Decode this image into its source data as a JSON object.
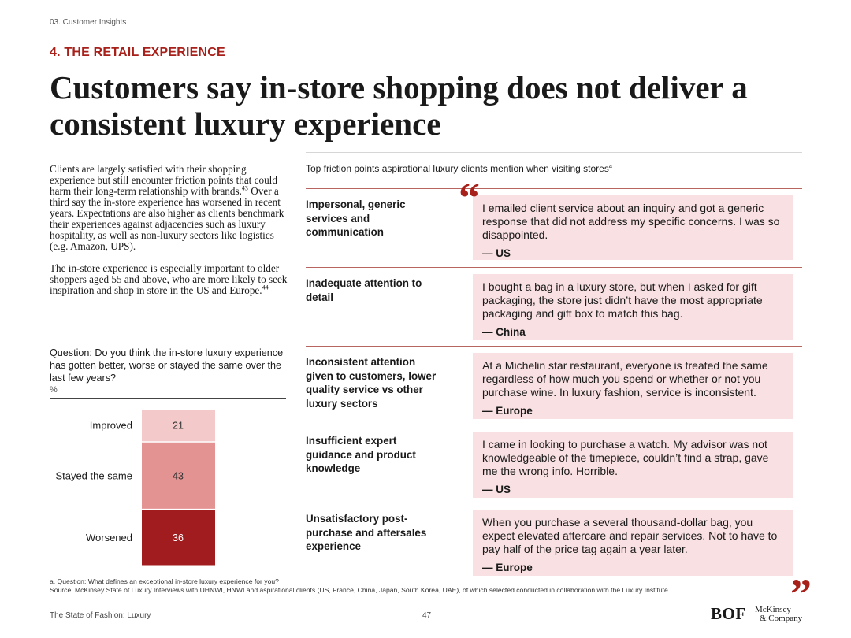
{
  "header": {
    "section": "03. Customer Insights",
    "kicker": "4. THE RETAIL EXPERIENCE",
    "headline": "Customers say in-store shopping does not deliver a consistent luxury experience"
  },
  "intro": {
    "p1_part1": "Clients are largely satisfied with their shopping experience but still encounter friction points that could harm their long-term relationship with brands.",
    "p1_sup": "43",
    "p1_part2": " Over a third say the in-store experience has worsened in recent years. Expectations are also higher as clients benchmark their experiences against adjacencies such as luxury hospitality, as well as non-luxury sectors like logistics (e.g. Amazon, UPS).",
    "p2_part1": "The in-store experience is especially important to older shoppers aged 55 and above, who are more likely to seek inspiration and shop in store in the US and Europe.",
    "p2_sup": "44"
  },
  "question": {
    "text": "Question: Do you think the in-store luxury experience has gotten better, worse or stayed the same over the last few years?",
    "unit": "%"
  },
  "chart_data": {
    "type": "bar",
    "orientation": "stacked-vertical",
    "categories": [
      "Improved",
      "Stayed the same",
      "Worsened"
    ],
    "values": [
      21,
      43,
      36
    ],
    "colors": [
      "#f4c9c9",
      "#e39392",
      "#a01c1f"
    ],
    "unit": "%",
    "title": "",
    "xlabel": "",
    "ylabel": "",
    "ylim": [
      0,
      100
    ]
  },
  "friction": {
    "caption": "Top friction points aspirational luxury clients mention when visiting stores",
    "caption_sup": "a",
    "rows": [
      {
        "label": "Impersonal, generic services and communication",
        "quote": "I emailed client service about an inquiry and got a generic response that did not address my specific concerns. I was so disappointed.",
        "origin": "— US"
      },
      {
        "label": "Inadequate attention to detail",
        "quote": "I bought a bag in a luxury store, but when I asked for gift packaging, the store just didn’t have the most appropriate packaging and gift box to match this bag.",
        "origin": "— China"
      },
      {
        "label": "Inconsistent attention given to customers, lower quality service vs other luxury sectors",
        "quote": "At a Michelin star restaurant, everyone is treated the same regardless of how much you spend or whether or not you purchase wine. In luxury fashion, service is inconsistent.",
        "origin": "— Europe"
      },
      {
        "label": "Insufficient expert guidance and product knowledge",
        "quote": "I came in looking to purchase a watch. My advisor was not knowledgeable of the timepiece, couldn’t find a strap, gave me the wrong info. Horrible.",
        "origin": "— US"
      },
      {
        "label": "Unsatisfactory post-purchase and aftersales experience",
        "quote": "When you purchase a several thousand-dollar bag, you expect elevated aftercare and repair services. Not to have to pay half of the price tag again a year later.",
        "origin": "— Europe"
      }
    ],
    "quote_open": "“",
    "quote_close": "”"
  },
  "footnotes": {
    "a": "a. Question: What defines an exceptional in-store luxury experience for you?",
    "source": "Source: McKinsey State of Luxury Interviews with UHNWI, HNWI and aspirational clients (US, France, China, Japan, South Korea, UAE), of which selected conducted in collaboration with the Luxury Institute"
  },
  "footer": {
    "publication": "The State of Fashion: Luxury",
    "page": "47",
    "bof_logo": "BOF",
    "mck_line1": "McKinsey",
    "mck_line2": "& Company"
  }
}
